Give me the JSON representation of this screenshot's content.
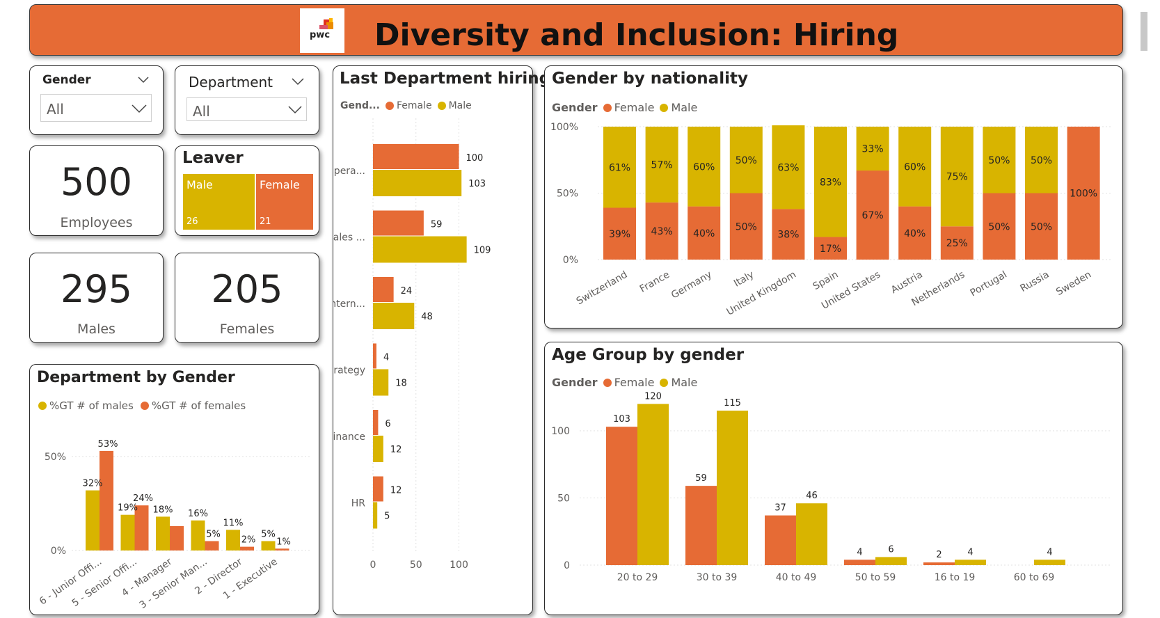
{
  "header": {
    "title": "Diversity and Inclusion: Hiring",
    "logo_text": "pwc"
  },
  "colors": {
    "female": "#e66b35",
    "male": "#d8b400",
    "header_bg": "#e66b35"
  },
  "slicers": [
    {
      "title": "Gender",
      "value": "All"
    },
    {
      "title": "Department",
      "value": "All"
    }
  ],
  "kpis": {
    "employees": {
      "value": "500",
      "label": "Employees"
    },
    "males": {
      "value": "295",
      "label": "Males"
    },
    "females": {
      "value": "205",
      "label": "Females"
    }
  },
  "leaver": {
    "title": "Leaver",
    "male_label": "Male",
    "male_value": "26",
    "female_label": "Female",
    "female_value": "21"
  },
  "chart_data": [
    {
      "id": "last_department_hiring",
      "type": "bar",
      "title": "Last Department hiring",
      "legend_title": "Gend...",
      "categories": [
        "Opera...",
        "Sales ...",
        "Intern...",
        "Strategy",
        "Finance",
        "HR"
      ],
      "series": [
        {
          "name": "Female",
          "values": [
            100,
            59,
            24,
            4,
            6,
            12
          ]
        },
        {
          "name": "Male",
          "values": [
            103,
            109,
            48,
            18,
            12,
            5
          ]
        }
      ],
      "x_ticks": [
        "0",
        "50",
        "100"
      ],
      "xlim": [
        0,
        125
      ],
      "orientation": "horizontal"
    },
    {
      "id": "gender_by_nationality",
      "type": "bar",
      "stacked": "100%",
      "title": "Gender by nationality",
      "legend_title": "Gender",
      "categories": [
        "Switzerland",
        "France",
        "Germany",
        "Italy",
        "United Kingdom",
        "Spain",
        "United States",
        "Austria",
        "Netherlands",
        "Portugal",
        "Russia",
        "Sweden"
      ],
      "series": [
        {
          "name": "Female",
          "values": [
            39,
            43,
            40,
            50,
            38,
            17,
            67,
            40,
            25,
            50,
            50,
            100
          ]
        },
        {
          "name": "Male",
          "values": [
            61,
            57,
            60,
            50,
            63,
            83,
            33,
            60,
            75,
            50,
            50,
            0
          ]
        }
      ],
      "y_ticks": [
        "100%",
        "50%",
        "0%"
      ]
    },
    {
      "id": "department_by_gender",
      "type": "bar",
      "title": "Department by Gender",
      "categories": [
        "6 - Junior Offi...",
        "5 - Senior Offi...",
        "4 - Manager",
        "3 - Senior Man...",
        "2 - Director",
        "1 - Executive"
      ],
      "series": [
        {
          "name": "%GT # of males",
          "values": [
            32,
            19,
            18,
            16,
            11,
            5
          ]
        },
        {
          "name": "%GT # of females",
          "values": [
            53,
            24,
            13,
            5,
            2,
            1
          ]
        }
      ],
      "value_labels": {
        "males": [
          "32%",
          "19%",
          "18%",
          "16%",
          "11%",
          "5%"
        ],
        "females": [
          "53%",
          "24%",
          "",
          "5%",
          "2%",
          "1%"
        ]
      },
      "y_ticks": [
        "50%",
        "0%"
      ],
      "ylim": [
        0,
        60
      ]
    },
    {
      "id": "age_group_by_gender",
      "type": "bar",
      "title": "Age Group by gender",
      "legend_title": "Gender",
      "categories": [
        "20 to 29",
        "30 to 39",
        "40 to 49",
        "50 to 59",
        "16 to 19",
        "60 to 69"
      ],
      "series": [
        {
          "name": "Female",
          "values": [
            103,
            59,
            37,
            4,
            2,
            0
          ]
        },
        {
          "name": "Male",
          "values": [
            120,
            115,
            46,
            6,
            4,
            4
          ]
        }
      ],
      "y_ticks": [
        "100",
        "50",
        "0"
      ],
      "ylim": [
        0,
        135
      ]
    }
  ]
}
